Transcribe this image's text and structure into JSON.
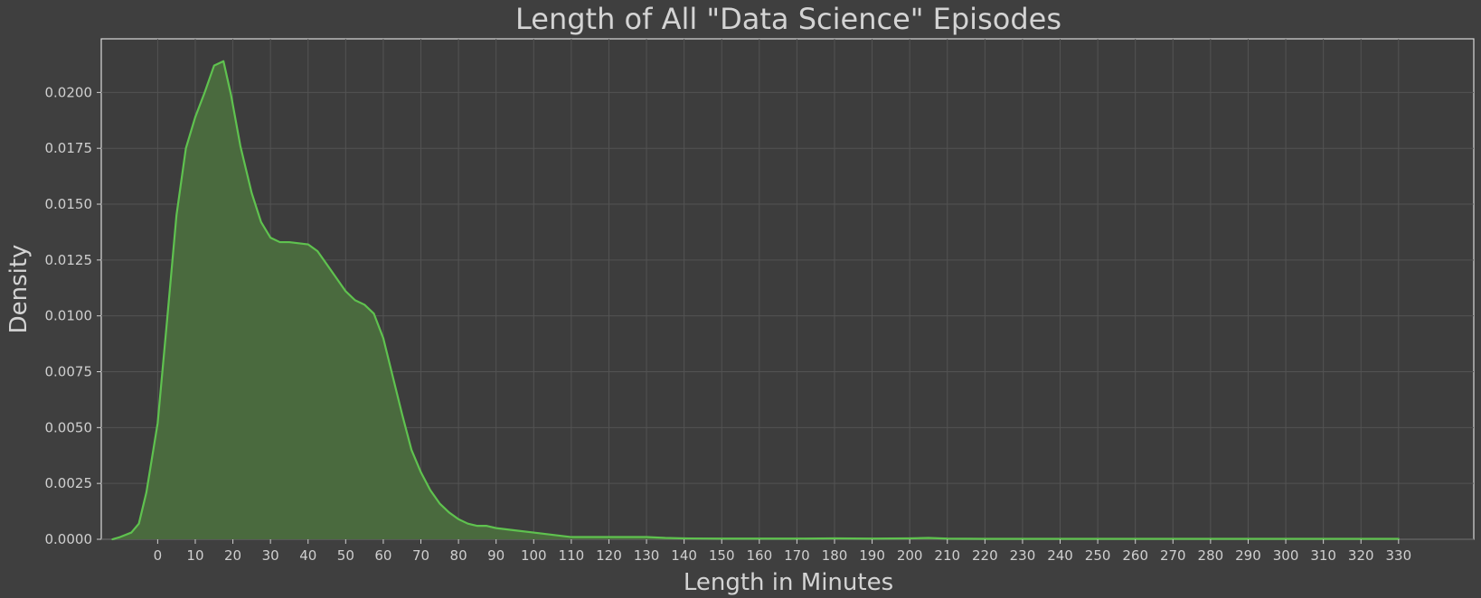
{
  "chart_data": {
    "type": "area",
    "title": "Length of All \"Data Science\" Episodes",
    "xlabel": "Length in Minutes",
    "ylabel": "Density",
    "xlim": [
      -15,
      350
    ],
    "ylim": [
      0,
      0.0224
    ],
    "x_ticks": [
      0,
      10,
      20,
      30,
      40,
      50,
      60,
      70,
      80,
      90,
      100,
      110,
      120,
      130,
      140,
      150,
      160,
      170,
      180,
      190,
      200,
      210,
      220,
      230,
      240,
      250,
      260,
      270,
      280,
      290,
      300,
      310,
      320,
      330
    ],
    "y_ticks": [
      0.0,
      0.0025,
      0.005,
      0.0075,
      0.01,
      0.0125,
      0.015,
      0.0175,
      0.02
    ],
    "y_tick_labels": [
      "0.0000",
      "0.0025",
      "0.0050",
      "0.0075",
      "0.0100",
      "0.0125",
      "0.0150",
      "0.0175",
      "0.0200"
    ],
    "grid": true,
    "line_color": "#5fc24f",
    "fill_color": "#4a6a3e",
    "series": [
      {
        "x": [
          -12,
          -10,
          -7,
          -5,
          -3,
          0,
          2.5,
          5,
          7.5,
          10,
          12.5,
          15,
          17.5,
          19.5,
          22,
          25,
          27.5,
          30,
          32.5,
          35,
          40,
          42.5,
          45,
          47.5,
          50,
          52.5,
          55,
          57.5,
          60,
          62.5,
          65,
          67.5,
          70,
          72.5,
          75,
          77.5,
          80,
          82.5,
          85,
          87.5,
          90,
          95,
          100,
          105,
          110,
          115,
          120,
          125,
          130,
          135,
          140,
          150,
          160,
          170,
          180,
          190,
          200,
          205,
          210,
          220,
          230,
          240,
          250,
          260,
          270,
          280,
          290,
          300,
          310,
          320,
          330
        ],
        "y": [
          0.0,
          0.0001,
          0.0003,
          0.0007,
          0.0021,
          0.0052,
          0.0098,
          0.0145,
          0.0175,
          0.0189,
          0.02,
          0.0212,
          0.0214,
          0.0199,
          0.0176,
          0.0155,
          0.0142,
          0.0135,
          0.0133,
          0.0133,
          0.0132,
          0.0129,
          0.0123,
          0.0117,
          0.0111,
          0.0107,
          0.0105,
          0.0101,
          0.009,
          0.0073,
          0.0056,
          0.004,
          0.003,
          0.0022,
          0.0016,
          0.0012,
          0.0009,
          0.0007,
          0.0006,
          0.0006,
          0.0005,
          0.0004,
          0.0003,
          0.0002,
          0.0001,
          0.0001,
          0.0001,
          0.0001,
          0.0001,
          6e-05,
          4e-05,
          3e-05,
          3e-05,
          3e-05,
          4e-05,
          3e-05,
          4e-05,
          6e-05,
          3e-05,
          2e-05,
          2e-05,
          2e-05,
          2e-05,
          2e-05,
          2e-05,
          2e-05,
          2e-05,
          2e-05,
          2e-05,
          2e-05,
          2e-05
        ]
      }
    ]
  }
}
